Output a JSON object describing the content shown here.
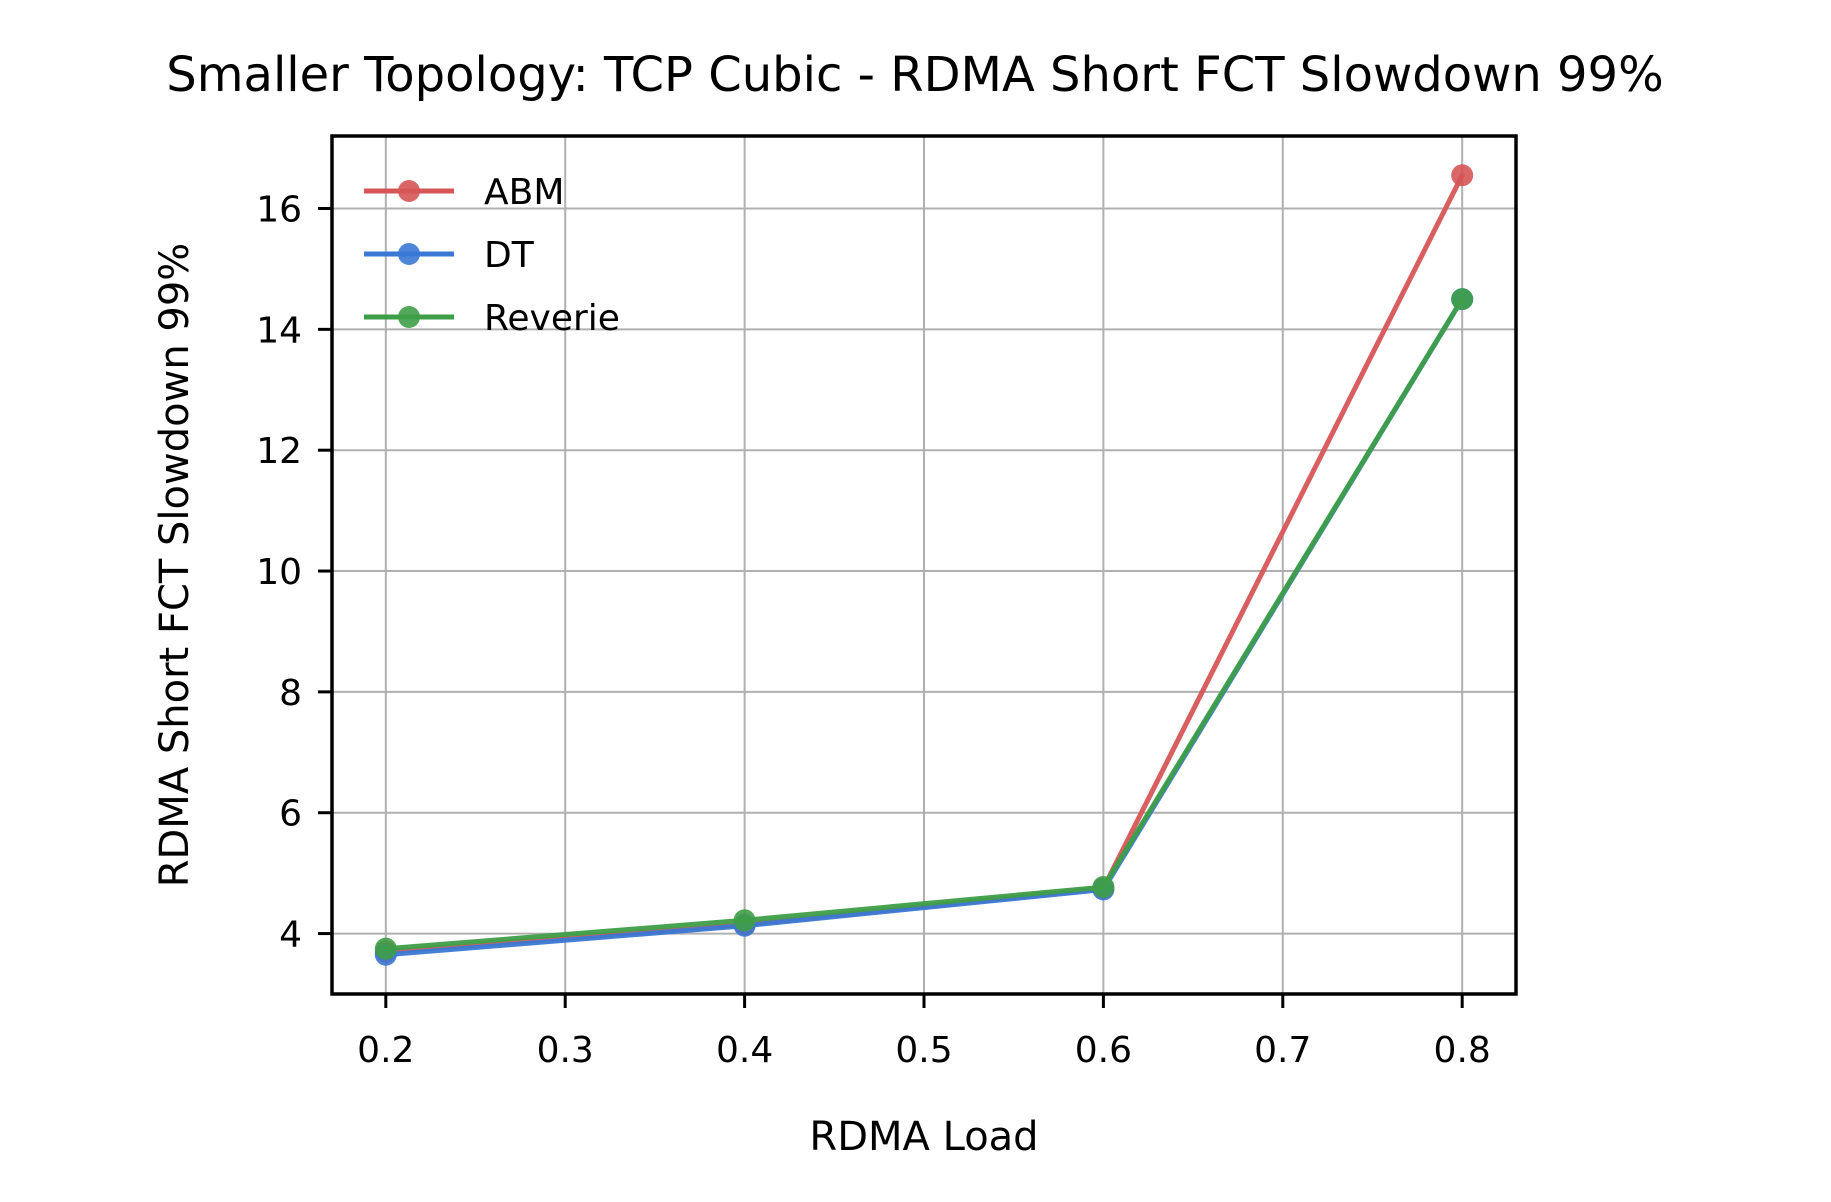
{
  "chart_data": {
    "type": "line",
    "title": "Smaller Topology: TCP Cubic - RDMA Short FCT Slowdown 99%",
    "xlabel": "RDMA Load",
    "ylabel": "RDMA Short FCT Slowdown 99%",
    "x": [
      0.2,
      0.4,
      0.6,
      0.8
    ],
    "xlim": [
      0.17,
      0.83
    ],
    "ylim": [
      3.0,
      17.2
    ],
    "xticks": [
      "0.2",
      "0.3",
      "0.4",
      "0.5",
      "0.6",
      "0.7",
      "0.8"
    ],
    "yticks": [
      "4",
      "6",
      "8",
      "10",
      "12",
      "14",
      "16"
    ],
    "grid": true,
    "legend_position": "top-left",
    "series": [
      {
        "name": "ABM",
        "color": "#d65557",
        "values": [
          3.7,
          4.15,
          4.75,
          16.55
        ]
      },
      {
        "name": "DT",
        "color": "#3a78d4",
        "values": [
          3.65,
          4.13,
          4.73,
          14.5
        ]
      },
      {
        "name": "Reverie",
        "color": "#3e9e48",
        "values": [
          3.75,
          4.22,
          4.77,
          14.5
        ]
      }
    ]
  }
}
